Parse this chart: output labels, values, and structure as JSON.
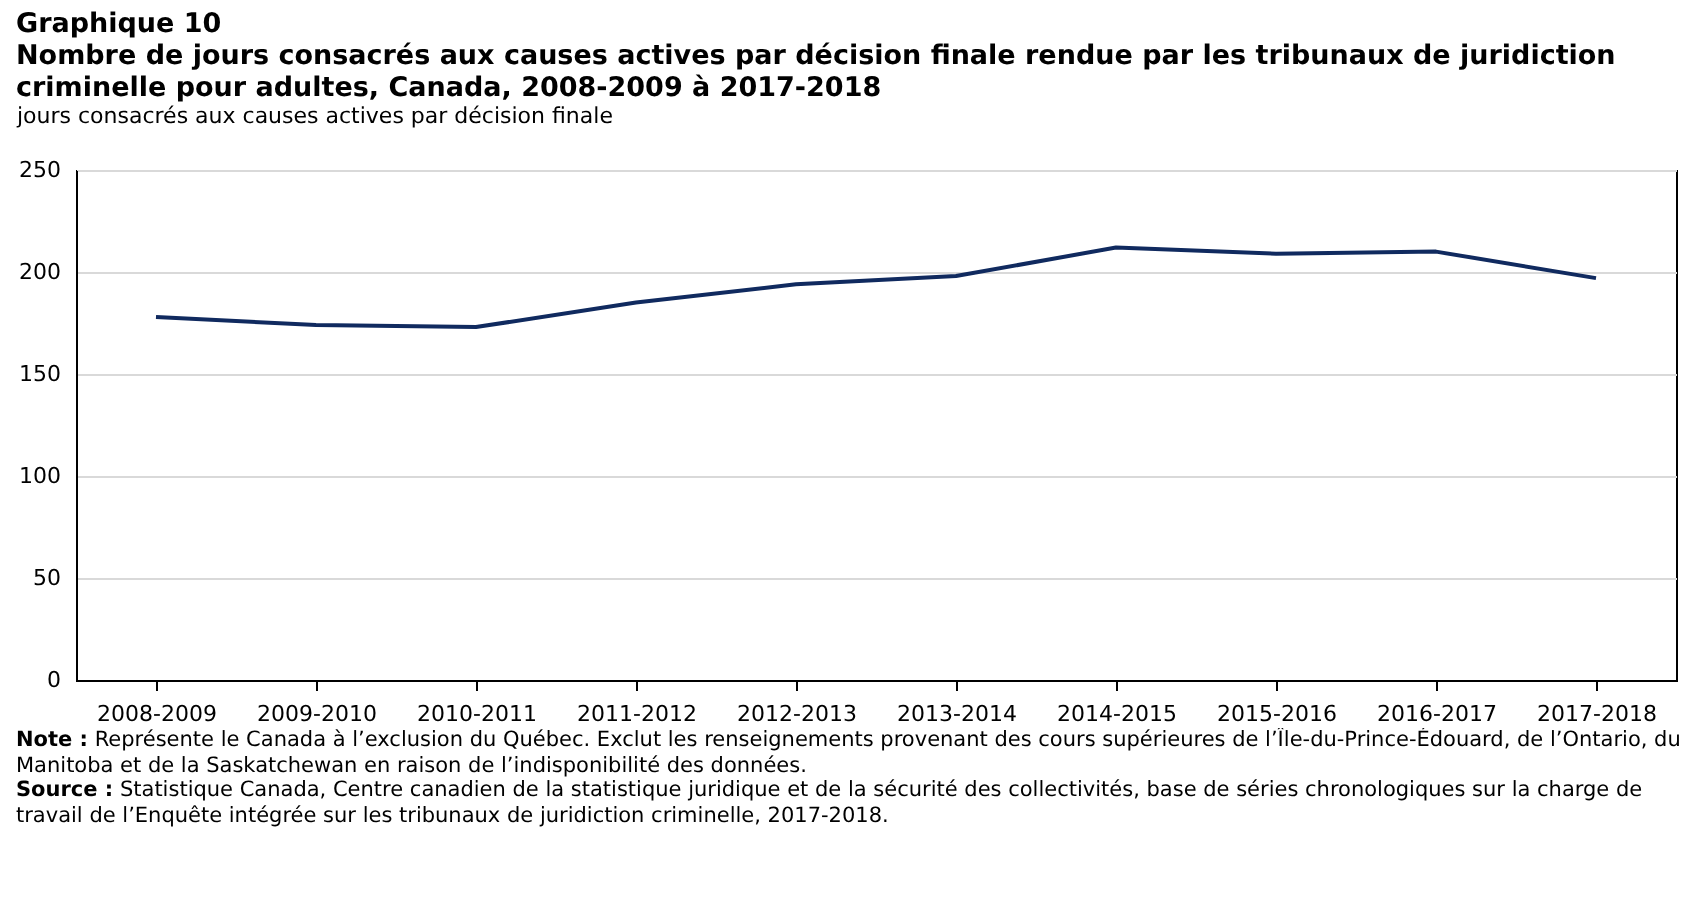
{
  "chart_data": {
    "type": "line",
    "title": "Graphique 10",
    "subtitle": "Nombre de jours consacrés aux causes actives par décision finale rendue par les tribunaux de juridiction criminelle pour adultes, Canada, 2008-2009 à 2017-2018",
    "ylabel": "jours consacrés aux causes actives par décision finale",
    "categories": [
      "2008-2009",
      "2009-2010",
      "2010-2011",
      "2011-2012",
      "2012-2013",
      "2013-2014",
      "2014-2015",
      "2015-2016",
      "2016-2017",
      "2017-2018"
    ],
    "series": [
      {
        "color": "#102a5f",
        "values": [
          178,
          174,
          173,
          185,
          194,
          198,
          212,
          209,
          210,
          197
        ]
      }
    ],
    "ylim": [
      0,
      250
    ],
    "yticks": [
      0,
      50,
      100,
      150,
      200,
      250
    ],
    "grid": "y",
    "annotations": [
      "Note : Représente le Canada à l’exclusion du Québec. Exclut les renseignements provenant des cours supérieures de l’Île-du-Prince-Édouard, de l’Ontario, du Manitoba et de la Saskatchewan en raison de l’indisponibilité des données.",
      "Source : Statistique Canada, Centre canadien de la statistique juridique et de la sécurité des collectivités, base de séries chronologiques sur la charge de travail de l’Enquête intégrée sur les tribunaux de juridiction criminelle, 2017-2018."
    ]
  }
}
